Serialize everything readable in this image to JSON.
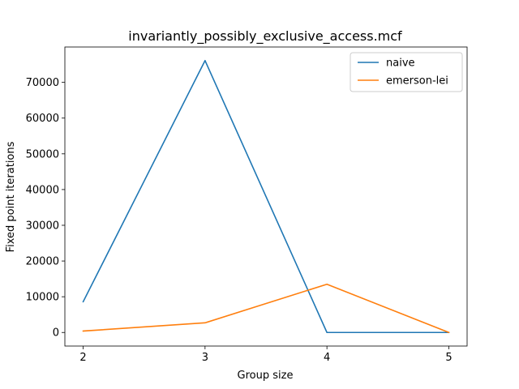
{
  "chart_data": {
    "type": "line",
    "title": "invariantly_possibly_exclusive_access.mcf",
    "xlabel": "Group size",
    "ylabel": "Fixed point iterations",
    "x": [
      2,
      3,
      4,
      5
    ],
    "xticks": [
      2,
      3,
      4,
      5
    ],
    "yticks": [
      0,
      10000,
      20000,
      30000,
      40000,
      50000,
      60000,
      70000
    ],
    "xlim": [
      1.85,
      5.15
    ],
    "ylim": [
      -3800,
      79900
    ],
    "grid": false,
    "legend_position": "top-right",
    "series": [
      {
        "name": "naive",
        "color": "#1f77b4",
        "values": [
          8600,
          76100,
          0,
          0
        ]
      },
      {
        "name": "emerson-lei",
        "color": "#ff7f0e",
        "values": [
          400,
          2700,
          13500,
          0
        ]
      }
    ]
  }
}
